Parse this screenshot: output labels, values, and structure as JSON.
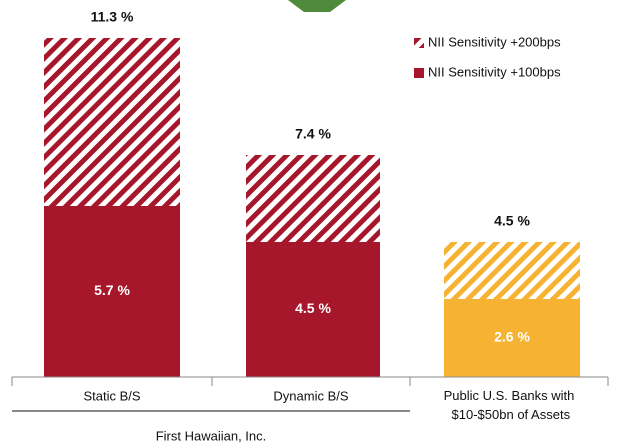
{
  "chart_data": {
    "type": "bar",
    "stacked": true,
    "categories": [
      "Static B/S",
      "Dynamic B/S",
      "Public U.S. Banks with\n$10-$50bn of Assets"
    ],
    "group_label": "First Hawaiian, Inc.",
    "series": [
      {
        "name": "NII Sensitivity +100bps",
        "color": "#a6172b",
        "colors": [
          "#a6172b",
          "#a6172b",
          "#f6b333"
        ],
        "values": [
          5.7,
          4.5,
          2.6
        ],
        "value_labels": [
          "5.7 %",
          "4.5 %",
          "2.6 %"
        ]
      },
      {
        "name": "NII Sensitivity +200bps",
        "color": "#a6172b",
        "colors": [
          "#a6172b",
          "#a6172b",
          "#f6b333"
        ],
        "hatch": true,
        "values": [
          5.6,
          2.9,
          1.9
        ]
      }
    ],
    "totals": [
      11.3,
      7.4,
      4.5
    ],
    "total_labels": [
      "11.3 %",
      "7.4 %",
      "4.5 %"
    ],
    "legend": "top-right"
  }
}
